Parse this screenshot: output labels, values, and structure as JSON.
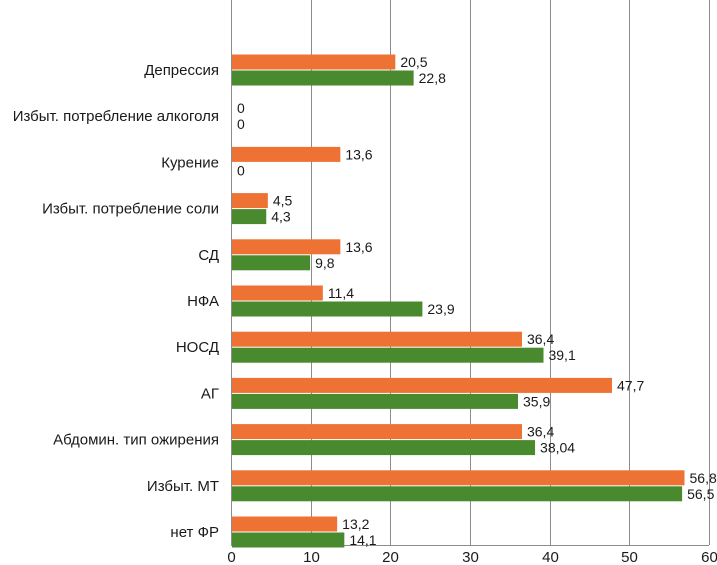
{
  "chart_data": {
    "type": "bar",
    "orientation": "horizontal",
    "title": "",
    "xlabel": "",
    "ylabel": "",
    "xlim": [
      0,
      60
    ],
    "x_ticks": [
      0,
      10,
      20,
      30,
      40,
      50,
      60
    ],
    "grid": true,
    "legend": "none",
    "categories": [
      "Депрессия",
      "Избыт. потребление алкоголя",
      "Курение",
      "Избыт. потребление соли",
      "СД",
      "НФА",
      "НОСД",
      "АГ",
      "Абдомин. тип ожирения",
      "Избыт. МТ",
      "нет ФР"
    ],
    "series": [
      {
        "name": "series-orange",
        "color": "#ED7234",
        "values": [
          20.5,
          0,
          13.6,
          4.5,
          13.6,
          11.4,
          36.4,
          47.7,
          36.4,
          56.8,
          13.2
        ],
        "labels": [
          "20,5",
          "0",
          "13,6",
          "4,5",
          "13,6",
          "11,4",
          "36,4",
          "47,7",
          "36,4",
          "56,8",
          "13,2"
        ]
      },
      {
        "name": "series-green",
        "color": "#4A8A2E",
        "values": [
          22.8,
          0,
          0,
          4.3,
          9.8,
          23.9,
          39.1,
          35.9,
          38.04,
          56.5,
          14.1
        ],
        "labels": [
          "22,8",
          "0",
          "0",
          "4,3",
          "9,8",
          "23,9",
          "39,1",
          "35,9",
          "38,04",
          "56,5",
          "14,1"
        ]
      }
    ]
  }
}
